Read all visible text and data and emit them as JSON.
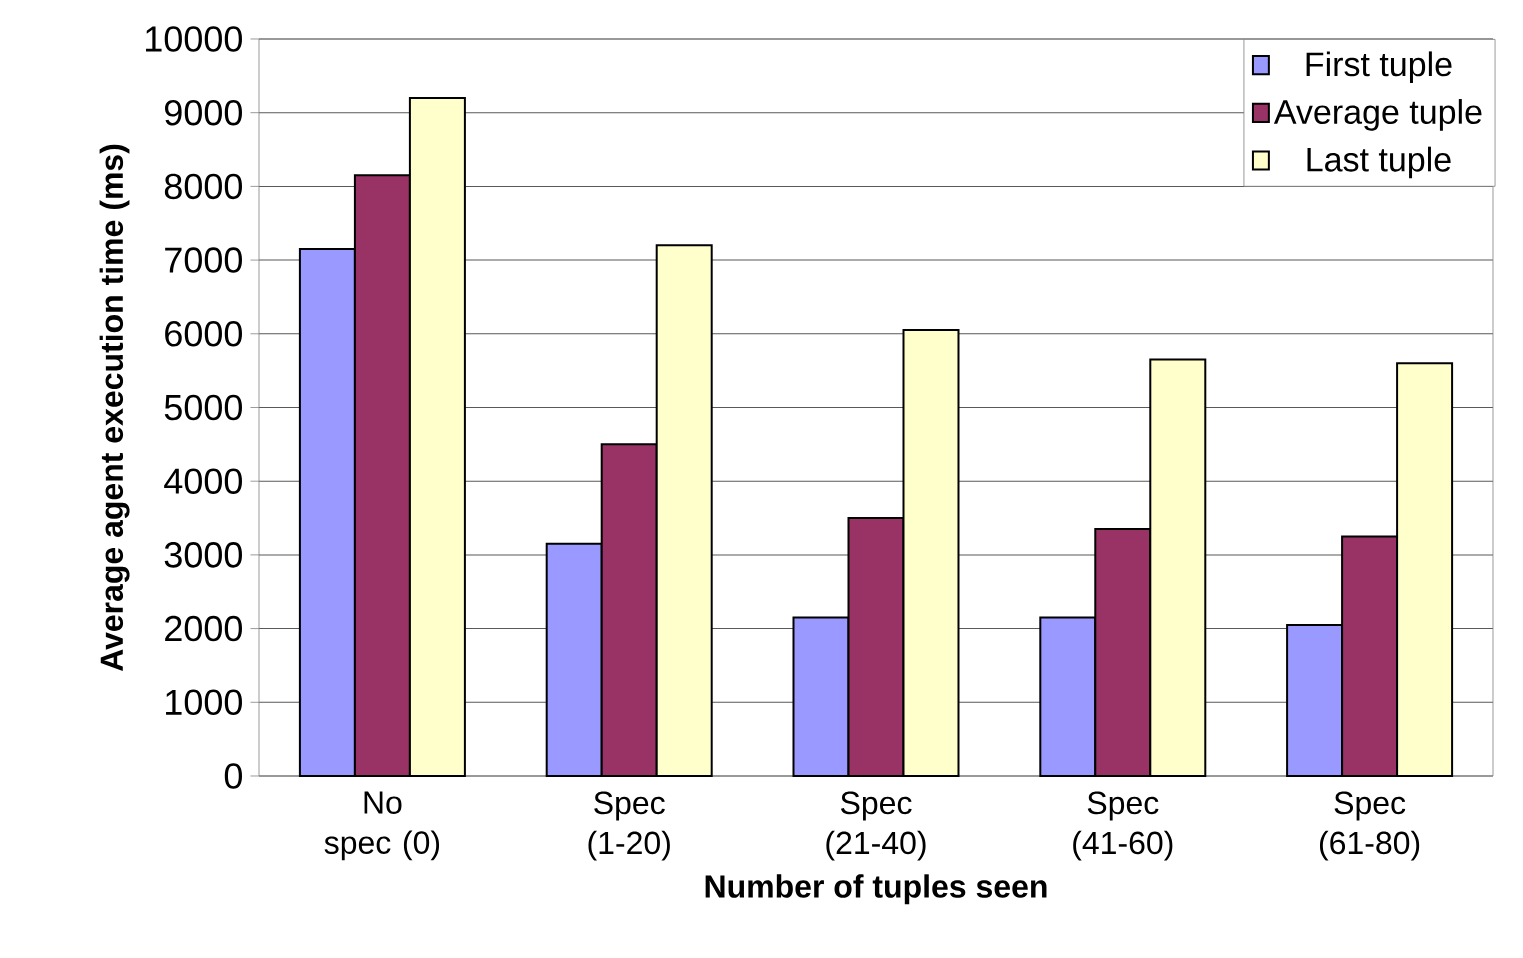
{
  "chart_data": {
    "type": "bar",
    "xlabel": "Number of tuples seen",
    "ylabel": "Average agent execution time (ms)",
    "categories": [
      "No spec (0)",
      "Spec (1-20)",
      "Spec (21-40)",
      "Spec (41-60)",
      "Spec (61-80)"
    ],
    "series": [
      {
        "name": "First tuple",
        "color": "#9999ff",
        "values": [
          7150,
          3150,
          2150,
          2150,
          2050
        ]
      },
      {
        "name": "Average tuple",
        "color": "#993366",
        "values": [
          8150,
          4500,
          3500,
          3350,
          3250
        ]
      },
      {
        "name": "Last tuple",
        "color": "#ffffcc",
        "values": [
          9200,
          7200,
          6050,
          5650,
          5600
        ]
      }
    ],
    "ylim": [
      0,
      10000
    ],
    "yticks": [
      0,
      1000,
      2000,
      3000,
      4000,
      5000,
      6000,
      7000,
      8000,
      9000,
      10000
    ],
    "grid": "y",
    "legend": "top right"
  }
}
